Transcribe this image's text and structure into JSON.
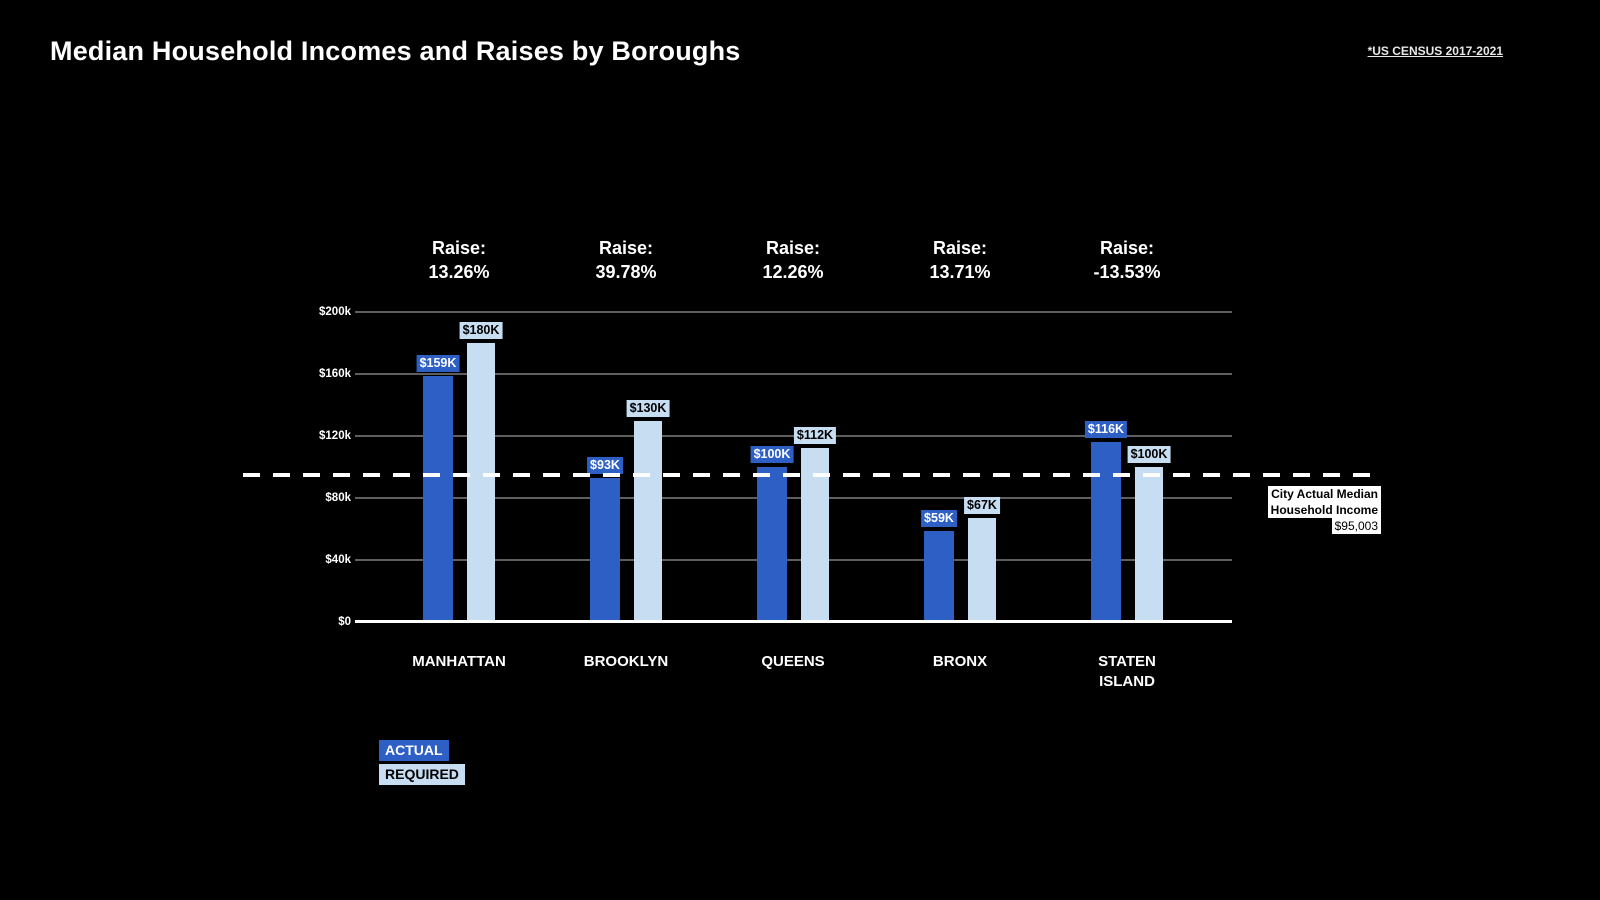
{
  "header": {
    "title": "Median Household Incomes and Raises by Boroughs",
    "source": "*US CENSUS 2017-2021"
  },
  "raise_prefix": "Raise:",
  "legend": {
    "actual": "ACTUAL",
    "required": "REQUIRED"
  },
  "reference_note": {
    "line1": "City Actual Median",
    "line2": "Household Income",
    "line3": "$95,003"
  },
  "colors": {
    "actual_blue": "#2d5fc4",
    "required_light_blue": "#c7ddf2",
    "gridline_gray": "#5e5e5e",
    "background": "#000000",
    "text": "#ffffff"
  },
  "chart_data": {
    "type": "bar",
    "title": "Median Household Incomes and Raises by Boroughs",
    "source": "*US CENSUS 2017-2021",
    "categories": [
      "MANHATTAN",
      "BROOKLYN",
      "QUEENS",
      "BRONX",
      "STATEN ISLAND"
    ],
    "unit": "USD thousands",
    "series": [
      {
        "name": "ACTUAL",
        "color": "#2d5fc4",
        "values": [
          159,
          93,
          100,
          59,
          116
        ],
        "labels": [
          "$159K",
          "$93K",
          "$100K",
          "$59K",
          "$116K"
        ]
      },
      {
        "name": "REQUIRED",
        "color": "#c7ddf2",
        "values": [
          180,
          130,
          112,
          67,
          100
        ],
        "labels": [
          "$180K",
          "$130K",
          "$112K",
          "$67K",
          "$100K"
        ]
      }
    ],
    "raises_percent": [
      13.26,
      39.78,
      12.26,
      13.71,
      -13.53
    ],
    "raise_labels": [
      "13.26%",
      "39.78%",
      "12.26%",
      "13.71%",
      "-13.53%"
    ],
    "y_tick_labels": [
      "$200k",
      "$160k",
      "$120k",
      "$80k",
      "$40k",
      "$0"
    ],
    "ylim": [
      0,
      200
    ],
    "grid": true,
    "legend_position": "bottom-left",
    "reference_line": {
      "value": 95.003,
      "style": "dashed",
      "label": "City Actual Median Household Income $95,003"
    }
  }
}
